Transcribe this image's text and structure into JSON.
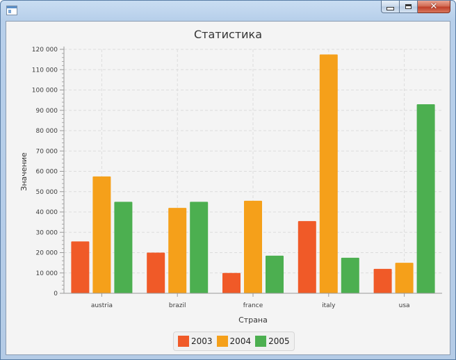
{
  "window": {
    "icons": {
      "app": "app-icon",
      "minimize": "minimize-icon",
      "maximize": "maximize-icon",
      "close": "close-icon"
    },
    "close_glyph": "✕"
  },
  "colors": {
    "2003": "#f05a28",
    "2004": "#f5a01a",
    "2005": "#4caf50"
  },
  "chart_data": {
    "type": "bar",
    "title": "Статистика",
    "xlabel": "Страна",
    "ylabel": "Значение",
    "categories": [
      "austria",
      "brazil",
      "france",
      "italy",
      "usa"
    ],
    "series": [
      {
        "name": "2003",
        "values": [
          25500,
          20000,
          10000,
          35500,
          12000
        ]
      },
      {
        "name": "2004",
        "values": [
          57500,
          42000,
          45500,
          117500,
          15000
        ]
      },
      {
        "name": "2005",
        "values": [
          45000,
          45000,
          18500,
          17500,
          93000
        ]
      }
    ],
    "ylim": [
      0,
      120000
    ],
    "yticks": [
      "0",
      "10 000",
      "20 000",
      "30 000",
      "40 000",
      "50 000",
      "60 000",
      "70 000",
      "80 000",
      "90 000",
      "100 000",
      "110 000",
      "120 000"
    ],
    "grid": true,
    "legend": "bottom"
  }
}
